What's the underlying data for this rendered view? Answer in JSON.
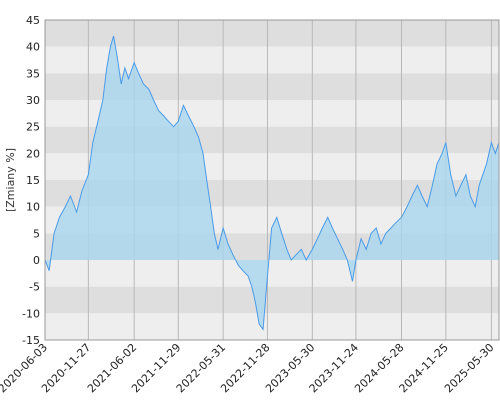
{
  "chart_data": {
    "type": "area",
    "title": "",
    "xlabel": "",
    "ylabel": "[Zmiany %]",
    "ylim": [
      -15,
      45
    ],
    "yticks": [
      45,
      40,
      35,
      30,
      25,
      20,
      15,
      10,
      5,
      0,
      -5,
      -10,
      -15
    ],
    "grid": "horizontal bands and vertical lines",
    "x_tick_labels": [
      "2020-06-03",
      "2020-11-27",
      "2021-06-02",
      "2021-11-29",
      "2022-05-31",
      "2022-11-28",
      "2023-05-30",
      "2023-11-24",
      "2024-05-28",
      "2024-11-25",
      "2025-05-30"
    ],
    "x": [
      "2020-06-03",
      "2020-06-20",
      "2020-07-10",
      "2020-08-01",
      "2020-08-25",
      "2020-09-15",
      "2020-10-10",
      "2020-11-01",
      "2020-11-27",
      "2020-12-15",
      "2021-01-05",
      "2021-01-25",
      "2021-02-10",
      "2021-02-25",
      "2021-03-10",
      "2021-03-25",
      "2021-04-10",
      "2021-04-25",
      "2021-05-10",
      "2021-05-25",
      "2021-06-02",
      "2021-06-20",
      "2021-07-10",
      "2021-08-01",
      "2021-08-20",
      "2021-09-10",
      "2021-10-01",
      "2021-10-20",
      "2021-11-10",
      "2021-11-29",
      "2021-12-20",
      "2022-01-10",
      "2022-02-01",
      "2022-02-20",
      "2022-03-10",
      "2022-03-25",
      "2022-04-10",
      "2022-04-25",
      "2022-05-10",
      "2022-05-31",
      "2022-06-20",
      "2022-07-10",
      "2022-08-01",
      "2022-08-20",
      "2022-09-10",
      "2022-09-25",
      "2022-10-10",
      "2022-10-25",
      "2022-11-10",
      "2022-11-28",
      "2022-12-15",
      "2023-01-05",
      "2023-01-25",
      "2023-02-15",
      "2023-03-05",
      "2023-03-25",
      "2023-04-15",
      "2023-05-05",
      "2023-05-30",
      "2023-06-20",
      "2023-07-10",
      "2023-08-01",
      "2023-08-20",
      "2023-09-10",
      "2023-10-01",
      "2023-10-20",
      "2023-11-10",
      "2023-11-24",
      "2023-12-15",
      "2024-01-05",
      "2024-01-25",
      "2024-02-15",
      "2024-03-05",
      "2024-03-25",
      "2024-04-15",
      "2024-05-05",
      "2024-05-28",
      "2024-06-20",
      "2024-07-10",
      "2024-08-01",
      "2024-08-20",
      "2024-09-10",
      "2024-10-01",
      "2024-10-20",
      "2024-11-10",
      "2024-11-25",
      "2024-12-15",
      "2025-01-05",
      "2025-01-25",
      "2025-02-15",
      "2025-03-05",
      "2025-03-25",
      "2025-04-10",
      "2025-04-25",
      "2025-05-10",
      "2025-05-30",
      "2025-06-15",
      "2025-06-30"
    ],
    "series": [
      {
        "values": [
          0,
          -2,
          5,
          8,
          10,
          12,
          9,
          13,
          16,
          22,
          26,
          30,
          36,
          40,
          42,
          38,
          33,
          36,
          34,
          36,
          37,
          35,
          33,
          32,
          30,
          28,
          27,
          26,
          25,
          26,
          29,
          27,
          25,
          23,
          20,
          15,
          10,
          5,
          2,
          6,
          3,
          1,
          -1,
          -2,
          -3,
          -5,
          -8,
          -12,
          -13,
          -3,
          6,
          8,
          5,
          2,
          0,
          1,
          2,
          0,
          2,
          4,
          6,
          8,
          6,
          4,
          2,
          0,
          -4,
          0,
          4,
          2,
          5,
          6,
          3,
          5,
          6,
          7,
          8,
          10,
          12,
          14,
          12,
          10,
          14,
          18,
          20,
          22,
          16,
          12,
          14,
          16,
          12,
          10,
          14,
          16,
          18,
          22,
          20,
          22
        ]
      }
    ],
    "colors": {
      "line": "#4a9be8",
      "area_fill": "#a8d6ee",
      "band_dark": "#dedede",
      "band_light": "#eeeeee",
      "vertical_grid": "#b8b8b8"
    }
  }
}
